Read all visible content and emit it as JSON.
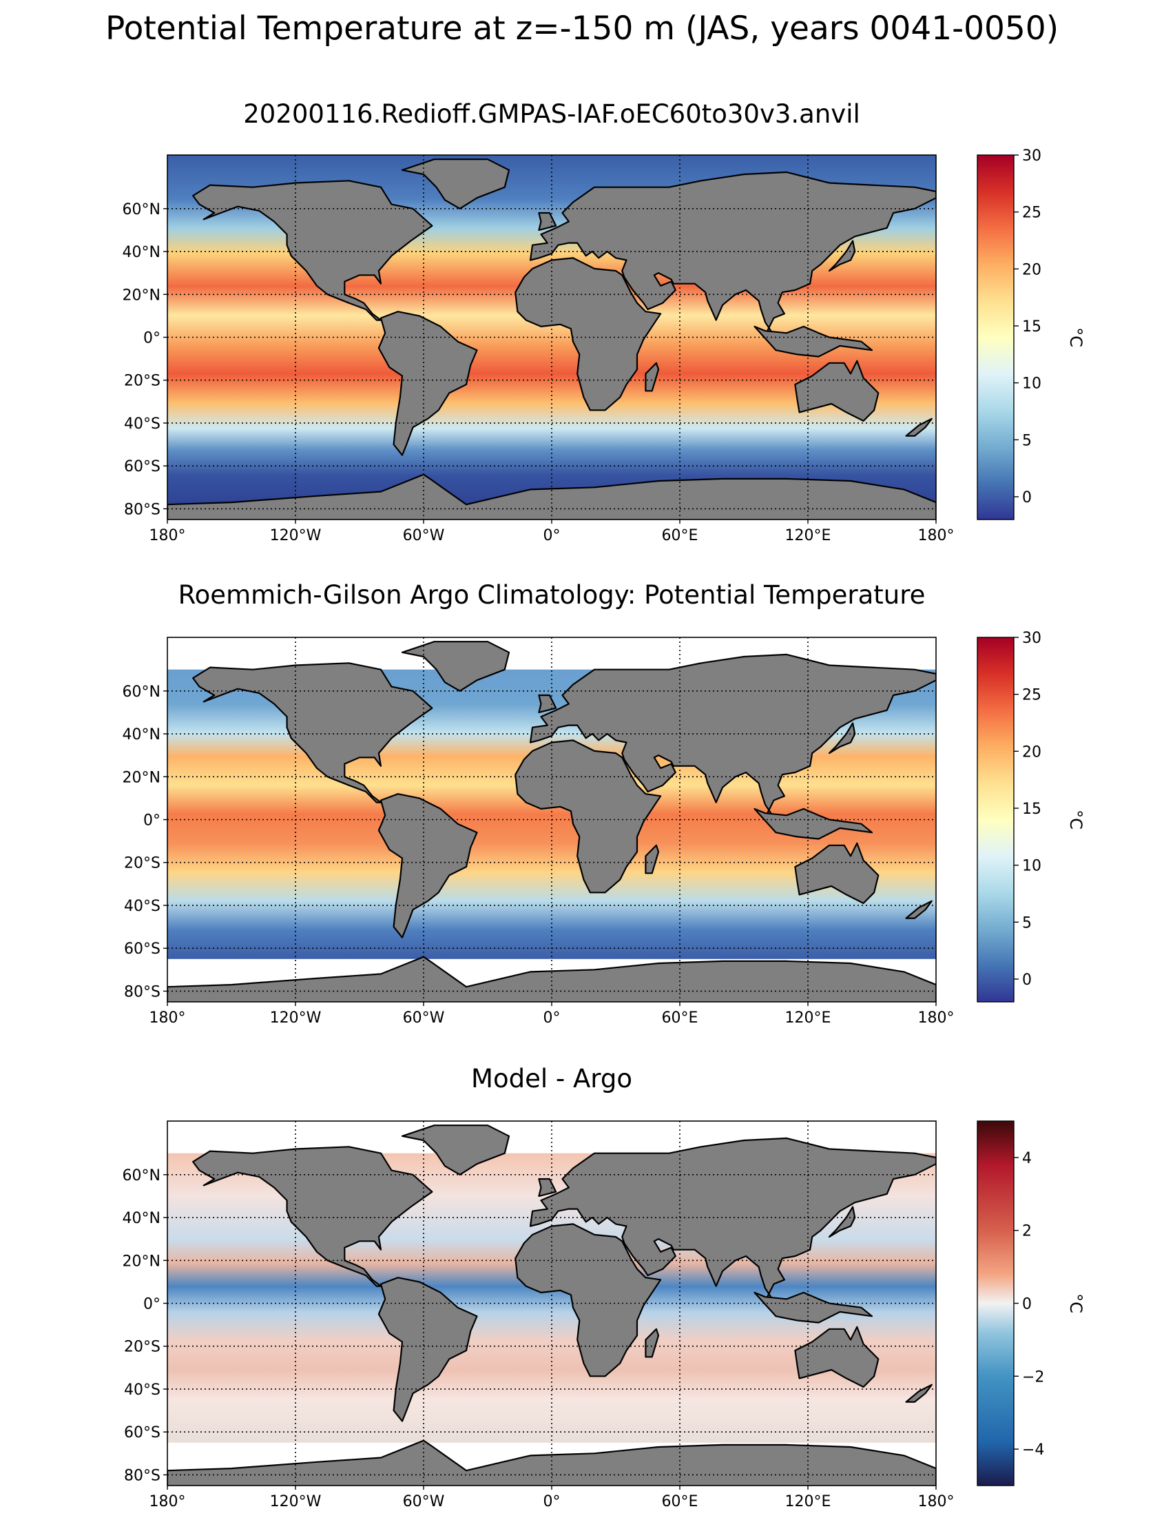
{
  "title": "Potential Temperature at z=-150 m (JAS, years 0041-0050)",
  "colors": {
    "land": "#808080",
    "grid": "#000000",
    "missing": "#ffffff"
  },
  "panel_titles": [
    "20200116.Redioff.GMPAS-IAF.oEC60to30v3.anvil",
    "Roemmich-Gilson Argo Climatology: Potential Temperature",
    "Model - Argo"
  ],
  "chart_data": [
    {
      "type": "heatmap",
      "title": "20200116.Redioff.GMPAS-IAF.oEC60to30v3.anvil",
      "x_tick_labels": [
        "180°",
        "120°W",
        "60°W",
        "0°",
        "60°E",
        "120°E",
        "180°"
      ],
      "x_ticks": [
        -180,
        -120,
        -60,
        0,
        60,
        120,
        180
      ],
      "y_tick_labels": [
        "60°N",
        "40°N",
        "20°N",
        "0°",
        "20°S",
        "40°S",
        "60°S",
        "80°S"
      ],
      "y_ticks": [
        60,
        40,
        20,
        0,
        -20,
        -40,
        -60,
        -80
      ],
      "xlim": [
        -180,
        180
      ],
      "ylim": [
        -85,
        85
      ],
      "colorbar": {
        "label": "°C",
        "min": -2,
        "max": 30,
        "ticks": [
          0,
          5,
          10,
          15,
          20,
          25,
          30
        ],
        "tick_labels": [
          "0",
          "5",
          "10",
          "15",
          "20",
          "25",
          "30"
        ],
        "cmap": "RdYlBu_r"
      },
      "grid": true
    },
    {
      "type": "heatmap",
      "title": "Roemmich-Gilson Argo Climatology: Potential Temperature",
      "x_tick_labels": [
        "180°",
        "120°W",
        "60°W",
        "0°",
        "60°E",
        "120°E",
        "180°"
      ],
      "x_ticks": [
        -180,
        -120,
        -60,
        0,
        60,
        120,
        180
      ],
      "y_tick_labels": [
        "60°N",
        "40°N",
        "20°N",
        "0°",
        "20°S",
        "40°S",
        "60°S",
        "80°S"
      ],
      "y_ticks": [
        60,
        40,
        20,
        0,
        -20,
        -40,
        -60,
        -80
      ],
      "xlim": [
        -180,
        180
      ],
      "ylim": [
        -85,
        85
      ],
      "data_lat_range": [
        -65,
        70
      ],
      "colorbar": {
        "label": "°C",
        "min": -2,
        "max": 30,
        "ticks": [
          0,
          5,
          10,
          15,
          20,
          25,
          30
        ],
        "tick_labels": [
          "0",
          "5",
          "10",
          "15",
          "20",
          "25",
          "30"
        ],
        "cmap": "RdYlBu_r"
      },
      "grid": true
    },
    {
      "type": "heatmap",
      "title": "Model - Argo",
      "x_tick_labels": [
        "180°",
        "120°W",
        "60°W",
        "0°",
        "60°E",
        "120°E",
        "180°"
      ],
      "x_ticks": [
        -180,
        -120,
        -60,
        0,
        60,
        120,
        180
      ],
      "y_tick_labels": [
        "60°N",
        "40°N",
        "20°N",
        "0°",
        "20°S",
        "40°S",
        "60°S",
        "80°S"
      ],
      "y_ticks": [
        60,
        40,
        20,
        0,
        -20,
        -40,
        -60,
        -80
      ],
      "xlim": [
        -180,
        180
      ],
      "ylim": [
        -85,
        85
      ],
      "data_lat_range": [
        -65,
        70
      ],
      "colorbar": {
        "label": "°C",
        "min": -5,
        "max": 5,
        "ticks": [
          4,
          2,
          0,
          -2,
          -4
        ],
        "tick_labels": [
          "4",
          "2",
          "0",
          "−2",
          "−4"
        ],
        "cmap": "RdBu_r"
      },
      "grid": true
    }
  ]
}
